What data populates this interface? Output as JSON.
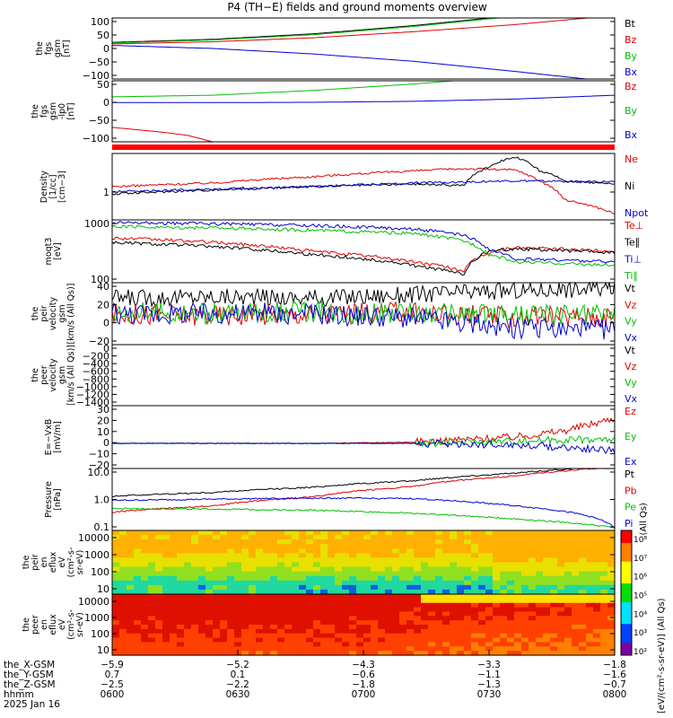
{
  "title": "P4 (TH−E) fields and ground moments overview",
  "colors": {
    "black": "#000000",
    "red": "#e00000",
    "green": "#00c000",
    "blue": "#0000d0",
    "bar_red": "#ff0000"
  },
  "chart_data": [
    {
      "type": "line",
      "ylabel": [
        "the",
        "fgs",
        "gsm",
        "[nT]"
      ],
      "yticks": [
        "100",
        "50",
        "0",
        "−50",
        "−100"
      ],
      "ylim": [
        -100,
        100
      ],
      "series": [
        {
          "name": "Bt",
          "color": "black",
          "x": [
            0,
            0.2,
            0.4,
            0.6,
            0.8,
            1.0
          ],
          "y": [
            20,
            30,
            48,
            75,
            108,
            140
          ]
        },
        {
          "name": "Bz",
          "color": "red",
          "x": [
            0,
            0.2,
            0.4,
            0.6,
            0.8,
            1.0
          ],
          "y": [
            15,
            22,
            35,
            55,
            78,
            108
          ]
        },
        {
          "name": "By",
          "color": "green",
          "x": [
            0,
            0.2,
            0.4,
            0.6,
            0.8,
            1.0
          ],
          "y": [
            18,
            28,
            45,
            72,
            105,
            140
          ]
        },
        {
          "name": "Bx",
          "color": "blue",
          "x": [
            0,
            0.2,
            0.4,
            0.6,
            0.8,
            1.0
          ],
          "y": [
            10,
            0,
            -18,
            -42,
            -75,
            -110
          ]
        }
      ]
    },
    {
      "type": "line",
      "ylabel": [
        "the",
        "fgs",
        "gsm",
        "-lp0",
        "[nT]"
      ],
      "yticks": [
        "50",
        "0",
        "−50",
        "−100"
      ],
      "ylim": [
        -125,
        65
      ],
      "series": [
        {
          "name": "Bz",
          "color": "red",
          "x": [
            0,
            0.1,
            0.15,
            0.2
          ],
          "y": [
            -80,
            -95,
            -105,
            -125
          ]
        },
        {
          "name": "By",
          "color": "green",
          "x": [
            0,
            0.2,
            0.4,
            0.6,
            0.8,
            1.0
          ],
          "y": [
            15,
            20,
            35,
            55,
            80,
            110
          ]
        },
        {
          "name": "Bx",
          "color": "blue",
          "x": [
            0,
            0.2,
            0.4,
            0.6,
            0.8,
            1.0
          ],
          "y": [
            -3,
            -3,
            -2,
            1,
            8,
            20
          ]
        }
      ]
    },
    {
      "type": "line",
      "ylabel": [
        "Density",
        "[1/cc]",
        "[cm−3]"
      ],
      "yticks": [
        "1"
      ],
      "ylim": [
        0.1,
        10
      ],
      "series": [
        {
          "name": "Ne",
          "color": "red",
          "x": [
            0,
            0.2,
            0.4,
            0.6,
            0.7,
            0.8,
            0.85,
            0.9,
            1.0
          ],
          "y": [
            1,
            1.3,
            2,
            3,
            3.5,
            3.2,
            1.5,
            0.4,
            0.15
          ]
        },
        {
          "name": "Ni",
          "color": "black",
          "x": [
            0,
            0.2,
            0.4,
            0.6,
            0.7,
            0.75,
            0.8,
            0.85,
            0.9,
            1.0
          ],
          "y": [
            0.6,
            0.8,
            1.0,
            1.2,
            1.1,
            4,
            8,
            3,
            1.5,
            1.2
          ]
        },
        {
          "name": "Npot",
          "color": "blue",
          "x": [
            0,
            0.2,
            0.4,
            0.6,
            0.8,
            1.0
          ],
          "y": [
            0.7,
            0.85,
            1.0,
            1.3,
            1.5,
            1.4
          ]
        }
      ]
    },
    {
      "type": "line",
      "ylabel": [
        "moqt3",
        "[eV]"
      ],
      "yticks": [
        "1000",
        "100"
      ],
      "ylim": [
        80,
        10000
      ],
      "series": [
        {
          "name": "Te⊥",
          "color": "red",
          "x": [
            0,
            0.2,
            0.4,
            0.6,
            0.7,
            0.75,
            0.8,
            1.0
          ],
          "y": [
            2500,
            1800,
            900,
            400,
            200,
            800,
            1200,
            900
          ]
        },
        {
          "name": "Te∥",
          "color": "black",
          "x": [
            0,
            0.2,
            0.4,
            0.6,
            0.7,
            0.75,
            0.8,
            1.0
          ],
          "y": [
            1800,
            1300,
            700,
            300,
            150,
            900,
            1100,
            800
          ]
        },
        {
          "name": "Ti⊥",
          "color": "blue",
          "x": [
            0,
            0.2,
            0.4,
            0.6,
            0.7,
            0.75,
            0.8,
            1.0
          ],
          "y": [
            8000,
            7500,
            6500,
            5000,
            3000,
            1000,
            500,
            400
          ]
        },
        {
          "name": "Ti∥",
          "color": "green",
          "x": [
            0,
            0.2,
            0.4,
            0.6,
            0.7,
            0.75,
            0.8,
            1.0
          ],
          "y": [
            6000,
            5500,
            4500,
            3500,
            2000,
            700,
            400,
            300
          ]
        }
      ]
    },
    {
      "type": "line",
      "ylabel": [
        "the",
        "peir",
        "velocity",
        "gsm",
        "[km/s (All Qs)]"
      ],
      "yticks": [
        "40",
        "20",
        "0",
        "−20"
      ],
      "ylim": [
        -40,
        40
      ],
      "series": [
        {
          "name": "Vt",
          "color": "black",
          "x": [
            0,
            0.2,
            0.4,
            0.6,
            0.8,
            1.0
          ],
          "y": [
            20,
            22,
            20,
            25,
            30,
            33
          ]
        },
        {
          "name": "Vz",
          "color": "red",
          "x": [
            0,
            0.2,
            0.4,
            0.6,
            0.8,
            1.0
          ],
          "y": [
            0,
            -2,
            0,
            2,
            -5,
            -3
          ]
        },
        {
          "name": "Vy",
          "color": "green",
          "x": [
            0,
            0.2,
            0.4,
            0.6,
            0.8,
            1.0
          ],
          "y": [
            2,
            0,
            3,
            0,
            -2,
            0
          ]
        },
        {
          "name": "Vx",
          "color": "blue",
          "x": [
            0,
            0.2,
            0.4,
            0.6,
            0.8,
            1.0
          ],
          "y": [
            0,
            1,
            0,
            -5,
            -20,
            -20
          ]
        }
      ]
    },
    {
      "type": "line",
      "ylabel": [
        "the",
        "peer",
        "velocity",
        "gsm",
        "[km/s (All Qs)]"
      ],
      "yticks": [
        "0",
        "−200",
        "−400",
        "−600",
        "−800",
        "−1000",
        "−1200",
        "−1400"
      ],
      "ylim": [
        -1400,
        0
      ],
      "series": [
        {
          "name": "Vt",
          "color": "black",
          "x": [],
          "y": []
        },
        {
          "name": "Vz",
          "color": "red",
          "x": [],
          "y": []
        },
        {
          "name": "Vy",
          "color": "green",
          "x": [],
          "y": []
        },
        {
          "name": "Vx",
          "color": "blue",
          "x": [],
          "y": []
        }
      ]
    },
    {
      "type": "line",
      "ylabel": [
        "E=−VxB",
        "[mV/m]"
      ],
      "yticks": [
        "30",
        "20",
        "10",
        "0",
        "−10",
        "−20"
      ],
      "ylim": [
        -20,
        30
      ],
      "series": [
        {
          "name": "Ez",
          "color": "red",
          "x": [
            0,
            0.2,
            0.4,
            0.6,
            0.8,
            0.9,
            1.0
          ],
          "y": [
            0,
            0,
            0,
            1,
            5,
            10,
            20
          ]
        },
        {
          "name": "Ey",
          "color": "green",
          "x": [
            0,
            0.2,
            0.4,
            0.6,
            0.8,
            0.9,
            1.0
          ],
          "y": [
            0,
            0,
            0,
            0,
            2,
            3,
            3
          ]
        },
        {
          "name": "Ex",
          "color": "blue",
          "x": [
            0,
            0.2,
            0.4,
            0.6,
            0.8,
            0.9,
            1.0
          ],
          "y": [
            0,
            0,
            0,
            0,
            -1,
            -3,
            -6
          ]
        }
      ]
    },
    {
      "type": "line",
      "ylabel": [
        "Pressure",
        "[nPa]"
      ],
      "yticks": [
        "10.0",
        "1.0",
        "0.1"
      ],
      "ylim": [
        0.03,
        20
      ],
      "series": [
        {
          "name": "Pt",
          "color": "black",
          "x": [
            0,
            0.2,
            0.4,
            0.6,
            0.8,
            1.0
          ],
          "y": [
            1.1,
            1.6,
            2.8,
            5.5,
            12,
            25
          ]
        },
        {
          "name": "Pb",
          "color": "red",
          "x": [
            0,
            0.2,
            0.4,
            0.6,
            0.8,
            1.0
          ],
          "y": [
            0.2,
            0.4,
            1.0,
            3,
            9,
            22
          ]
        },
        {
          "name": "Pe",
          "color": "green",
          "x": [
            0,
            0.2,
            0.4,
            0.6,
            0.8,
            1.0
          ],
          "y": [
            0.3,
            0.28,
            0.25,
            0.18,
            0.1,
            0.04
          ]
        },
        {
          "name": "Pi",
          "color": "blue",
          "x": [
            0,
            0.2,
            0.4,
            0.6,
            0.8,
            1.0
          ],
          "y": [
            0.7,
            0.8,
            0.9,
            0.85,
            0.4,
            0.04
          ]
        }
      ],
      "right_label": "(All Qs)"
    },
    {
      "type": "heatmap",
      "ylabel": [
        "the",
        "peir",
        "en",
        "eflux",
        "eV",
        "(cm²-s-",
        "sr-eV)"
      ],
      "yticks": [
        "10000",
        "1000",
        "100",
        "10"
      ]
    },
    {
      "type": "heatmap",
      "ylabel": [
        "the",
        "peer",
        "en",
        "eflux",
        "eV",
        "(cm²-s-",
        "sr-eV)"
      ],
      "yticks": [
        "10000",
        "1000",
        "100",
        "10"
      ]
    }
  ],
  "colorbar": {
    "ticks": [
      "10⁸",
      "10⁷",
      "10⁶",
      "10⁵",
      "10⁴",
      "10³",
      "10²"
    ],
    "label": "[eV/(cm²-s-sr-eV)] (All Qs)"
  },
  "xaxis": {
    "rows": [
      {
        "label": "the_X-GSM",
        "values": [
          "−5.9",
          "−5.2",
          "−4.3",
          "−3.3",
          "−1.8"
        ]
      },
      {
        "label": "the_Y-GSM",
        "values": [
          "0.7",
          "0.1",
          "−0.6",
          "−1.1",
          "−1.6"
        ]
      },
      {
        "label": "the_Z-GSM",
        "values": [
          "−2.5",
          "−2.2",
          "−1.8",
          "−1.3",
          "−0.7"
        ]
      },
      {
        "label": "hhmm",
        "values": [
          "0600",
          "0630",
          "0700",
          "0730",
          "0800"
        ]
      }
    ],
    "date": "2025 Jan 16"
  }
}
